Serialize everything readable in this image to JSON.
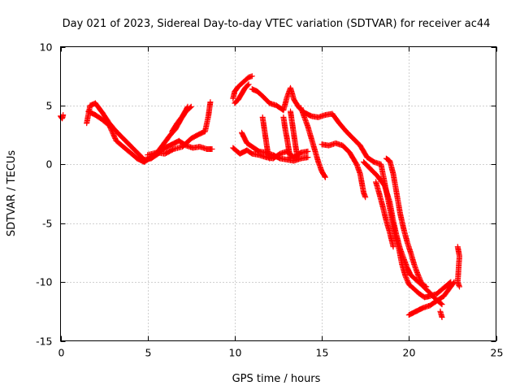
{
  "chart_data": {
    "type": "scatter",
    "title": "Day 021 of 2023, Sidereal Day-to-day VTEC variation (SDTVAR) for receiver ac44",
    "xlabel": "GPS time / hours",
    "ylabel": "SDTVAR / TECUs",
    "xlim": [
      0,
      25
    ],
    "ylim": [
      -15,
      10
    ],
    "xticks": [
      0,
      5,
      10,
      15,
      20,
      25
    ],
    "yticks": [
      -15,
      -10,
      -5,
      0,
      5,
      10
    ],
    "xtick_labels": [
      "0",
      "5",
      "10",
      "15",
      "20",
      "25"
    ],
    "ytick_labels": [
      "-15",
      "-10",
      "-5",
      "0",
      "5",
      "10"
    ],
    "grid": true,
    "marker": "+",
    "series": [
      {
        "name": "SDTVAR",
        "color": "#ff0000",
        "traces": [
          [
            [
              0.0,
              4.1
            ],
            [
              0.1,
              3.9
            ],
            [
              0.15,
              4.2
            ]
          ],
          [
            [
              1.5,
              3.5
            ],
            [
              1.7,
              5.0
            ],
            [
              2.0,
              5.2
            ],
            [
              2.4,
              4.4
            ],
            [
              2.8,
              3.5
            ],
            [
              3.2,
              2.8
            ],
            [
              3.6,
              2.2
            ],
            [
              4.0,
              1.6
            ],
            [
              4.4,
              1.0
            ],
            [
              4.8,
              0.4
            ],
            [
              5.2,
              0.5
            ],
            [
              5.6,
              0.9
            ],
            [
              6.0,
              1.4
            ],
            [
              6.4,
              1.7
            ],
            [
              6.8,
              2.0
            ],
            [
              7.2,
              1.6
            ],
            [
              7.6,
              1.4
            ],
            [
              8.0,
              1.5
            ],
            [
              8.4,
              1.3
            ],
            [
              8.7,
              1.3
            ]
          ],
          [
            [
              1.6,
              4.5
            ],
            [
              2.0,
              4.2
            ],
            [
              2.4,
              3.8
            ],
            [
              2.8,
              3.3
            ],
            [
              3.2,
              2.0
            ],
            [
              3.6,
              1.5
            ],
            [
              4.0,
              1.0
            ],
            [
              4.4,
              0.5
            ],
            [
              4.8,
              0.2
            ],
            [
              5.2,
              0.6
            ],
            [
              5.6,
              1.1
            ],
            [
              6.0,
              1.9
            ],
            [
              6.3,
              2.5
            ],
            [
              6.6,
              3.0
            ],
            [
              6.9,
              3.8
            ],
            [
              7.2,
              4.5
            ],
            [
              7.5,
              4.9
            ]
          ],
          [
            [
              5.0,
              0.8
            ],
            [
              5.5,
              1.0
            ],
            [
              6.0,
              0.9
            ],
            [
              6.5,
              1.3
            ],
            [
              7.0,
              1.5
            ],
            [
              7.5,
              2.2
            ],
            [
              8.0,
              2.6
            ],
            [
              8.3,
              2.8
            ],
            [
              8.5,
              4.2
            ],
            [
              8.6,
              5.3
            ]
          ],
          [
            [
              6.4,
              2.8
            ],
            [
              6.7,
              3.5
            ],
            [
              7.0,
              4.1
            ],
            [
              7.3,
              4.9
            ]
          ],
          [
            [
              9.9,
              5.6
            ],
            [
              10.0,
              6.2
            ],
            [
              10.2,
              6.6
            ],
            [
              10.5,
              7.0
            ],
            [
              10.8,
              7.4
            ],
            [
              11.0,
              7.5
            ]
          ],
          [
            [
              10.0,
              5.2
            ],
            [
              10.2,
              5.5
            ],
            [
              10.4,
              6.0
            ],
            [
              10.6,
              6.5
            ],
            [
              10.8,
              6.8
            ]
          ],
          [
            [
              11.0,
              6.4
            ],
            [
              11.3,
              6.2
            ],
            [
              11.6,
              5.8
            ],
            [
              12.0,
              5.2
            ],
            [
              12.4,
              5.0
            ],
            [
              12.8,
              4.6
            ],
            [
              13.0,
              5.7
            ],
            [
              13.2,
              6.5
            ],
            [
              13.4,
              5.5
            ],
            [
              13.7,
              4.8
            ],
            [
              14.0,
              4.4
            ],
            [
              14.4,
              4.1
            ],
            [
              14.8,
              4.0
            ],
            [
              15.2,
              4.2
            ],
            [
              15.6,
              4.3
            ],
            [
              16.0,
              3.5
            ],
            [
              16.4,
              2.8
            ],
            [
              16.8,
              2.2
            ],
            [
              17.2,
              1.6
            ],
            [
              17.6,
              0.6
            ],
            [
              18.0,
              0.2
            ],
            [
              18.4,
              0.0
            ],
            [
              18.6,
              -1.5
            ],
            [
              18.8,
              -3.0
            ],
            [
              19.0,
              -4.5
            ],
            [
              19.2,
              -6.0
            ],
            [
              19.4,
              -7.0
            ],
            [
              19.6,
              -8.5
            ],
            [
              19.8,
              -9.5
            ],
            [
              20.0,
              -10.2
            ],
            [
              20.3,
              -10.6
            ],
            [
              20.6,
              -11.0
            ],
            [
              20.9,
              -11.3
            ],
            [
              21.2,
              -11.2
            ],
            [
              21.6,
              -11.0
            ],
            [
              22.0,
              -10.5
            ],
            [
              22.4,
              -10.0
            ]
          ],
          [
            [
              9.9,
              1.4
            ],
            [
              10.3,
              0.9
            ],
            [
              10.7,
              1.2
            ],
            [
              11.0,
              0.9
            ],
            [
              11.4,
              0.8
            ],
            [
              11.8,
              0.6
            ],
            [
              12.2,
              0.5
            ],
            [
              12.6,
              0.9
            ],
            [
              13.0,
              1.1
            ],
            [
              13.4,
              0.6
            ],
            [
              13.8,
              1.0
            ],
            [
              14.2,
              1.1
            ]
          ],
          [
            [
              10.4,
              2.7
            ],
            [
              10.7,
              1.8
            ],
            [
              11.0,
              1.5
            ],
            [
              11.4,
              1.1
            ],
            [
              11.8,
              1.0
            ],
            [
              12.2,
              0.8
            ],
            [
              12.6,
              0.5
            ],
            [
              13.0,
              0.4
            ],
            [
              13.4,
              0.3
            ],
            [
              13.8,
              0.5
            ],
            [
              14.2,
              0.6
            ]
          ],
          [
            [
              11.6,
              4.0
            ],
            [
              11.7,
              3.0
            ],
            [
              11.8,
              2.0
            ],
            [
              11.9,
              1.0
            ],
            [
              12.0,
              0.5
            ]
          ],
          [
            [
              12.8,
              4.0
            ],
            [
              12.9,
              3.0
            ],
            [
              13.0,
              2.2
            ],
            [
              13.1,
              1.3
            ],
            [
              13.2,
              0.5
            ]
          ],
          [
            [
              13.2,
              4.5
            ],
            [
              13.3,
              3.5
            ],
            [
              13.4,
              2.5
            ],
            [
              13.5,
              1.5
            ],
            [
              13.6,
              0.5
            ]
          ],
          [
            [
              13.8,
              4.8
            ],
            [
              14.0,
              4.0
            ],
            [
              14.2,
              3.2
            ],
            [
              14.4,
              2.2
            ],
            [
              14.6,
              1.2
            ],
            [
              14.8,
              0.2
            ],
            [
              15.0,
              -0.6
            ],
            [
              15.2,
              -1.1
            ]
          ],
          [
            [
              15.0,
              1.7
            ],
            [
              15.4,
              1.6
            ],
            [
              15.8,
              1.8
            ],
            [
              16.2,
              1.6
            ],
            [
              16.6,
              1.0
            ],
            [
              17.0,
              0.0
            ],
            [
              17.2,
              -0.8
            ],
            [
              17.3,
              -1.6
            ],
            [
              17.4,
              -2.4
            ],
            [
              17.5,
              -2.8
            ]
          ],
          [
            [
              17.4,
              0.2
            ],
            [
              17.8,
              -0.4
            ],
            [
              18.2,
              -1.0
            ],
            [
              18.6,
              -1.8
            ],
            [
              18.9,
              -3.2
            ],
            [
              19.1,
              -4.8
            ],
            [
              19.3,
              -6.1
            ],
            [
              19.5,
              -7.2
            ],
            [
              19.7,
              -8.0
            ],
            [
              19.9,
              -8.8
            ],
            [
              20.1,
              -9.4
            ],
            [
              20.4,
              -9.8
            ],
            [
              20.7,
              -10.2
            ],
            [
              21.0,
              -10.4
            ]
          ],
          [
            [
              18.1,
              -1.5
            ],
            [
              18.3,
              -2.5
            ],
            [
              18.5,
              -3.6
            ],
            [
              18.7,
              -4.8
            ],
            [
              18.9,
              -5.8
            ],
            [
              19.1,
              -7.0
            ]
          ],
          [
            [
              18.7,
              0.5
            ],
            [
              18.9,
              0.3
            ],
            [
              19.1,
              -0.8
            ],
            [
              19.3,
              -2.5
            ],
            [
              19.5,
              -4.2
            ],
            [
              19.7,
              -5.5
            ],
            [
              19.9,
              -6.6
            ],
            [
              20.1,
              -7.5
            ],
            [
              20.3,
              -8.5
            ],
            [
              20.5,
              -9.3
            ],
            [
              20.7,
              -10.0
            ],
            [
              20.9,
              -10.5
            ],
            [
              21.2,
              -10.9
            ],
            [
              21.5,
              -11.4
            ],
            [
              21.9,
              -11.9
            ]
          ],
          [
            [
              20.0,
              -12.8
            ],
            [
              20.4,
              -12.5
            ],
            [
              20.8,
              -12.2
            ],
            [
              21.2,
              -12.0
            ],
            [
              21.6,
              -11.6
            ],
            [
              22.0,
              -11.2
            ],
            [
              22.3,
              -10.6
            ],
            [
              22.6,
              -10.0
            ]
          ],
          [
            [
              21.8,
              -12.5
            ],
            [
              21.9,
              -13.0
            ]
          ],
          [
            [
              22.8,
              -7.0
            ],
            [
              22.9,
              -7.8
            ],
            [
              22.8,
              -10.0
            ],
            [
              22.9,
              -10.4
            ]
          ]
        ]
      }
    ]
  }
}
